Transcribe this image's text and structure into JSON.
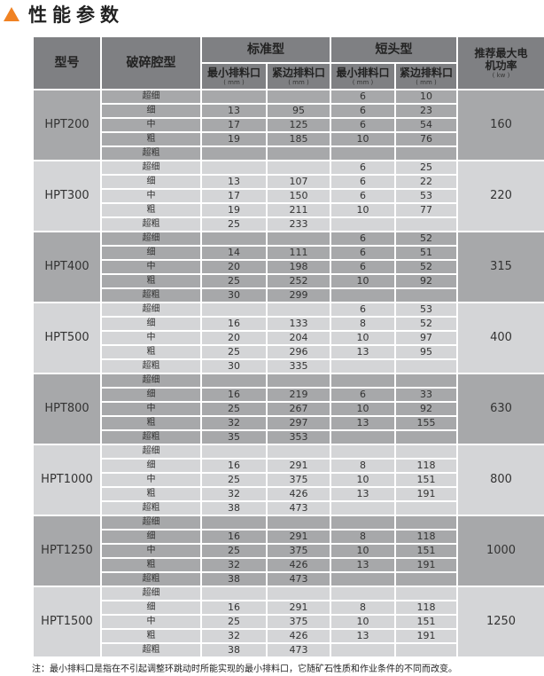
{
  "title": "性能参数",
  "accent_color": "#f08223",
  "header": {
    "model": "型号",
    "cavity": "破碎腔型",
    "standard": "标准型",
    "short_head": "短头型",
    "min_setting": "最小排料口",
    "closed_side": "紧边排料口",
    "unit_mm": "( mm )",
    "power": "推荐最大电机功率",
    "unit_kw": "( kw )"
  },
  "groups": [
    {
      "model": "HPT200",
      "power": "160",
      "rows": [
        [
          "超细",
          "",
          "",
          "6",
          "10"
        ],
        [
          "细",
          "13",
          "95",
          "6",
          "23"
        ],
        [
          "中",
          "17",
          "125",
          "6",
          "54"
        ],
        [
          "粗",
          "19",
          "185",
          "10",
          "76"
        ],
        [
          "超粗",
          "",
          "",
          "",
          ""
        ]
      ]
    },
    {
      "model": "HPT300",
      "power": "220",
      "rows": [
        [
          "超细",
          "",
          "",
          "6",
          "25"
        ],
        [
          "细",
          "13",
          "107",
          "6",
          "22"
        ],
        [
          "中",
          "17",
          "150",
          "6",
          "53"
        ],
        [
          "粗",
          "19",
          "211",
          "10",
          "77"
        ],
        [
          "超粗",
          "25",
          "233",
          "",
          ""
        ]
      ]
    },
    {
      "model": "HPT400",
      "power": "315",
      "rows": [
        [
          "超细",
          "",
          "",
          "6",
          "52"
        ],
        [
          "细",
          "14",
          "111",
          "6",
          "51"
        ],
        [
          "中",
          "20",
          "198",
          "6",
          "52"
        ],
        [
          "粗",
          "25",
          "252",
          "10",
          "92"
        ],
        [
          "超粗",
          "30",
          "299",
          "",
          ""
        ]
      ]
    },
    {
      "model": "HPT500",
      "power": "400",
      "rows": [
        [
          "超细",
          "",
          "",
          "6",
          "53"
        ],
        [
          "细",
          "16",
          "133",
          "8",
          "52"
        ],
        [
          "中",
          "20",
          "204",
          "10",
          "97"
        ],
        [
          "粗",
          "25",
          "296",
          "13",
          "95"
        ],
        [
          "超粗",
          "30",
          "335",
          "",
          ""
        ]
      ]
    },
    {
      "model": "HPT800",
      "power": "630",
      "rows": [
        [
          "超细",
          "",
          "",
          "",
          ""
        ],
        [
          "细",
          "16",
          "219",
          "6",
          "33"
        ],
        [
          "中",
          "25",
          "267",
          "10",
          "92"
        ],
        [
          "粗",
          "32",
          "297",
          "13",
          "155"
        ],
        [
          "超粗",
          "35",
          "353",
          "",
          ""
        ]
      ]
    },
    {
      "model": "HPT1000",
      "power": "800",
      "rows": [
        [
          "超细",
          "",
          "",
          "",
          ""
        ],
        [
          "细",
          "16",
          "291",
          "8",
          "118"
        ],
        [
          "中",
          "25",
          "375",
          "10",
          "151"
        ],
        [
          "粗",
          "32",
          "426",
          "13",
          "191"
        ],
        [
          "超粗",
          "38",
          "473",
          "",
          ""
        ]
      ]
    },
    {
      "model": "HPT1250",
      "power": "1000",
      "rows": [
        [
          "超细",
          "",
          "",
          "",
          ""
        ],
        [
          "细",
          "16",
          "291",
          "8",
          "118"
        ],
        [
          "中",
          "25",
          "375",
          "10",
          "151"
        ],
        [
          "粗",
          "32",
          "426",
          "13",
          "191"
        ],
        [
          "超粗",
          "38",
          "473",
          "",
          ""
        ]
      ]
    },
    {
      "model": "HPT1500",
      "power": "1250",
      "rows": [
        [
          "超细",
          "",
          "",
          "",
          ""
        ],
        [
          "细",
          "16",
          "291",
          "8",
          "118"
        ],
        [
          "中",
          "25",
          "375",
          "10",
          "151"
        ],
        [
          "粗",
          "32",
          "426",
          "13",
          "191"
        ],
        [
          "超粗",
          "38",
          "473",
          "",
          ""
        ]
      ]
    }
  ],
  "note": "注：最小排料口是指在不引起调整环跳动时所能实现的最小排料口，它随矿石性质和作业条件的不同而改变。"
}
